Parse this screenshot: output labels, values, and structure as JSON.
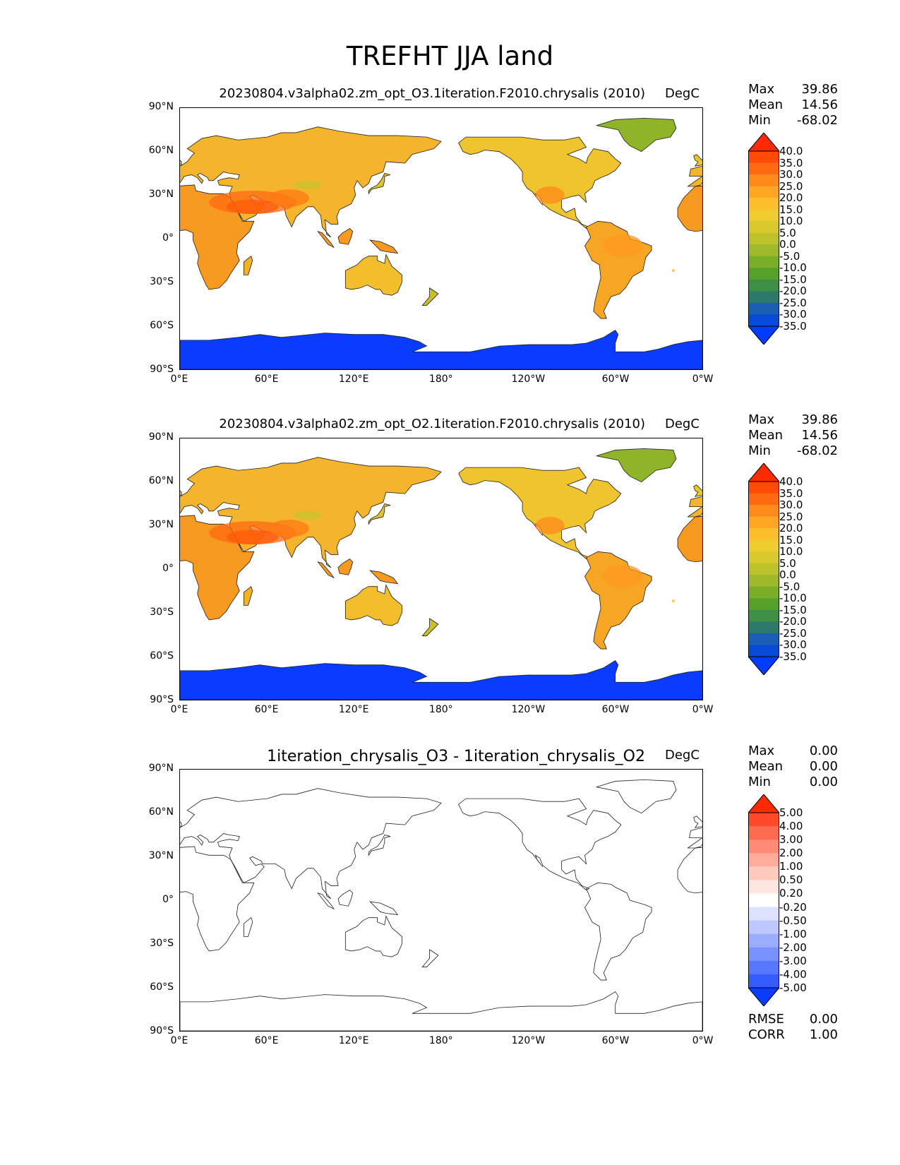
{
  "title": "TREFHT JJA land",
  "lat_ticks": [
    "90°N",
    "60°N",
    "30°N",
    "0°",
    "30°S",
    "60°S",
    "90°S"
  ],
  "lon_ticks": [
    "0°E",
    "60°E",
    "120°E",
    "180°",
    "120°W",
    "60°W",
    "0°W"
  ],
  "panels": [
    {
      "title": "20230804.v3alpha02.zm_opt_O3.1iteration.F2010.chrysalis (2010)",
      "units": "DegC",
      "stats": {
        "max_label": "Max",
        "max": "39.86",
        "mean_label": "Mean",
        "mean": "14.56",
        "min_label": "Min",
        "min": "-68.02"
      },
      "cbar_levels": [
        "40.0",
        "35.0",
        "30.0",
        "25.0",
        "20.0",
        "15.0",
        "10.0",
        "5.0",
        "0.0",
        "-5.0",
        "-10.0",
        "-15.0",
        "-20.0",
        "-25.0",
        "-30.0",
        "-35.0"
      ],
      "cbar_colors": [
        "#ff2a00",
        "#ff4b05",
        "#ff6a10",
        "#ff8a1a",
        "#ffa623",
        "#fbbf2b",
        "#f0cd2e",
        "#d8c92c",
        "#bdc12a",
        "#9eb92a",
        "#7bae27",
        "#55a129",
        "#3e8f45",
        "#2d7a6b",
        "#1a5fb4",
        "#0a4ad8",
        "#003cff"
      ]
    },
    {
      "title": "20230804.v3alpha02.zm_opt_O2.1iteration.F2010.chrysalis (2010)",
      "units": "DegC",
      "stats": {
        "max_label": "Max",
        "max": "39.86",
        "mean_label": "Mean",
        "mean": "14.56",
        "min_label": "Min",
        "min": "-68.02"
      },
      "cbar_levels": [
        "40.0",
        "35.0",
        "30.0",
        "25.0",
        "20.0",
        "15.0",
        "10.0",
        "5.0",
        "0.0",
        "-5.0",
        "-10.0",
        "-15.0",
        "-20.0",
        "-25.0",
        "-30.0",
        "-35.0"
      ],
      "cbar_colors": [
        "#ff2a00",
        "#ff4b05",
        "#ff6a10",
        "#ff8a1a",
        "#ffa623",
        "#fbbf2b",
        "#f0cd2e",
        "#d8c92c",
        "#bdc12a",
        "#9eb92a",
        "#7bae27",
        "#55a129",
        "#3e8f45",
        "#2d7a6b",
        "#1a5fb4",
        "#0a4ad8",
        "#003cff"
      ]
    },
    {
      "title": "1iteration_chrysalis_O3 - 1iteration_chrysalis_O2",
      "units": "DegC",
      "stats": {
        "max_label": "Max",
        "max": "0.00",
        "mean_label": "Mean",
        "mean": "0.00",
        "min_label": "Min",
        "min": "0.00"
      },
      "cbar_levels": [
        "5.00",
        "4.00",
        "3.00",
        "2.00",
        "1.00",
        "0.50",
        "0.20",
        "-0.20",
        "-0.50",
        "-1.00",
        "-2.00",
        "-3.00",
        "-4.00",
        "-5.00"
      ],
      "cbar_colors": [
        "#ff2a00",
        "#ff4a2a",
        "#ff6a50",
        "#ff8a76",
        "#ffac9c",
        "#ffcabe",
        "#ffe5df",
        "#ffffff",
        "#dde3ff",
        "#bcc8ff",
        "#9aadff",
        "#7892ff",
        "#5677ff",
        "#345cff",
        "#0a3cff"
      ],
      "rmse_label": "RMSE",
      "rmse": "0.00",
      "corr_label": "CORR",
      "corr": "1.00"
    }
  ],
  "chart_data": {
    "type": "heatmap",
    "title": "TREFHT JJA land",
    "x_ticks": [
      "0°E",
      "60°E",
      "120°E",
      "180°",
      "120°W",
      "60°W",
      "0°W"
    ],
    "y_ticks": [
      "90°N",
      "60°N",
      "30°N",
      "0°",
      "30°S",
      "60°S",
      "90°S"
    ],
    "maps": [
      {
        "name": "20230804.v3alpha02.zm_opt_O3.1iteration.F2010.chrysalis (2010)",
        "units": "DegC",
        "max": 39.86,
        "mean": 14.56,
        "min": -68.02
      },
      {
        "name": "20230804.v3alpha02.zm_opt_O2.1iteration.F2010.chrysalis (2010)",
        "units": "DegC",
        "max": 39.86,
        "mean": 14.56,
        "min": -68.02
      },
      {
        "name": "1iteration_chrysalis_O3 - 1iteration_chrysalis_O2",
        "units": "DegC",
        "max": 0.0,
        "mean": 0.0,
        "min": 0.0,
        "rmse": 0.0,
        "corr": 1.0
      }
    ]
  }
}
